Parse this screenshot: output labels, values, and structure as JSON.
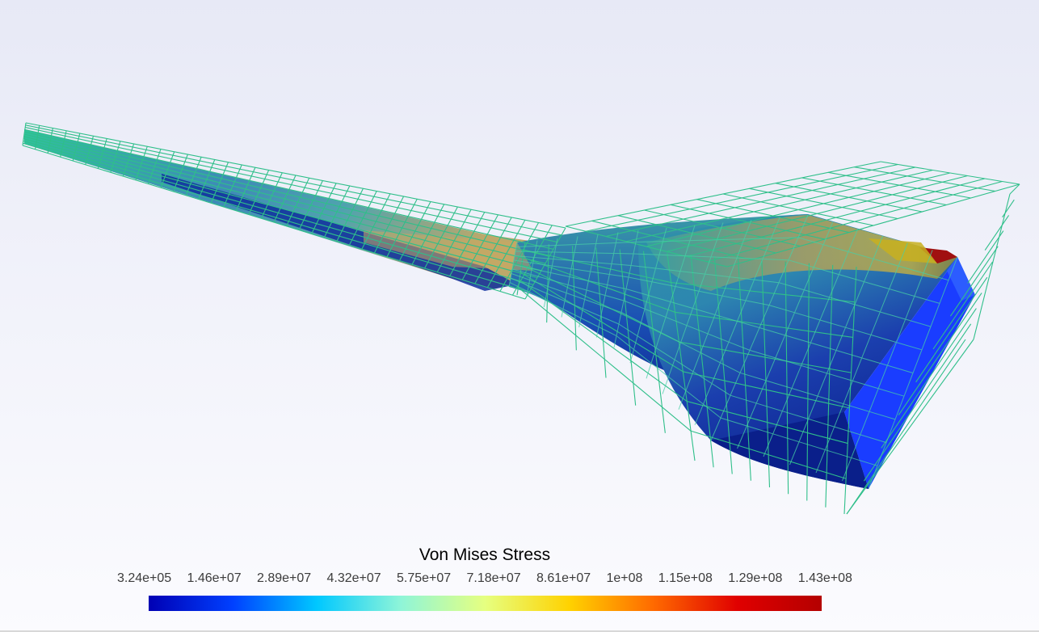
{
  "legend": {
    "title": "Von Mises Stress",
    "ticks": [
      "3.24e+05",
      "1.46e+07",
      "2.89e+07",
      "4.32e+07",
      "5.75e+07",
      "7.18e+07",
      "8.61e+07",
      "1e+08",
      "1.15e+08",
      "1.29e+08",
      "1.43e+08"
    ],
    "colormap": [
      "#0000b4",
      "#0040ff",
      "#00c8ff",
      "#8ff5d8",
      "#e6ff80",
      "#ffd200",
      "#ff6a00",
      "#e00000",
      "#b40000"
    ]
  },
  "colors": {
    "wireframe": "#2fbf8a",
    "body_low": "#1436b8",
    "body_mid": "#2f8fb0",
    "body_high": "#c9a13a",
    "end_face": "#1a3dff",
    "hotspot": "#a01010",
    "background_top": "#e7e9f6",
    "background_bottom": "#fbfbfe"
  }
}
